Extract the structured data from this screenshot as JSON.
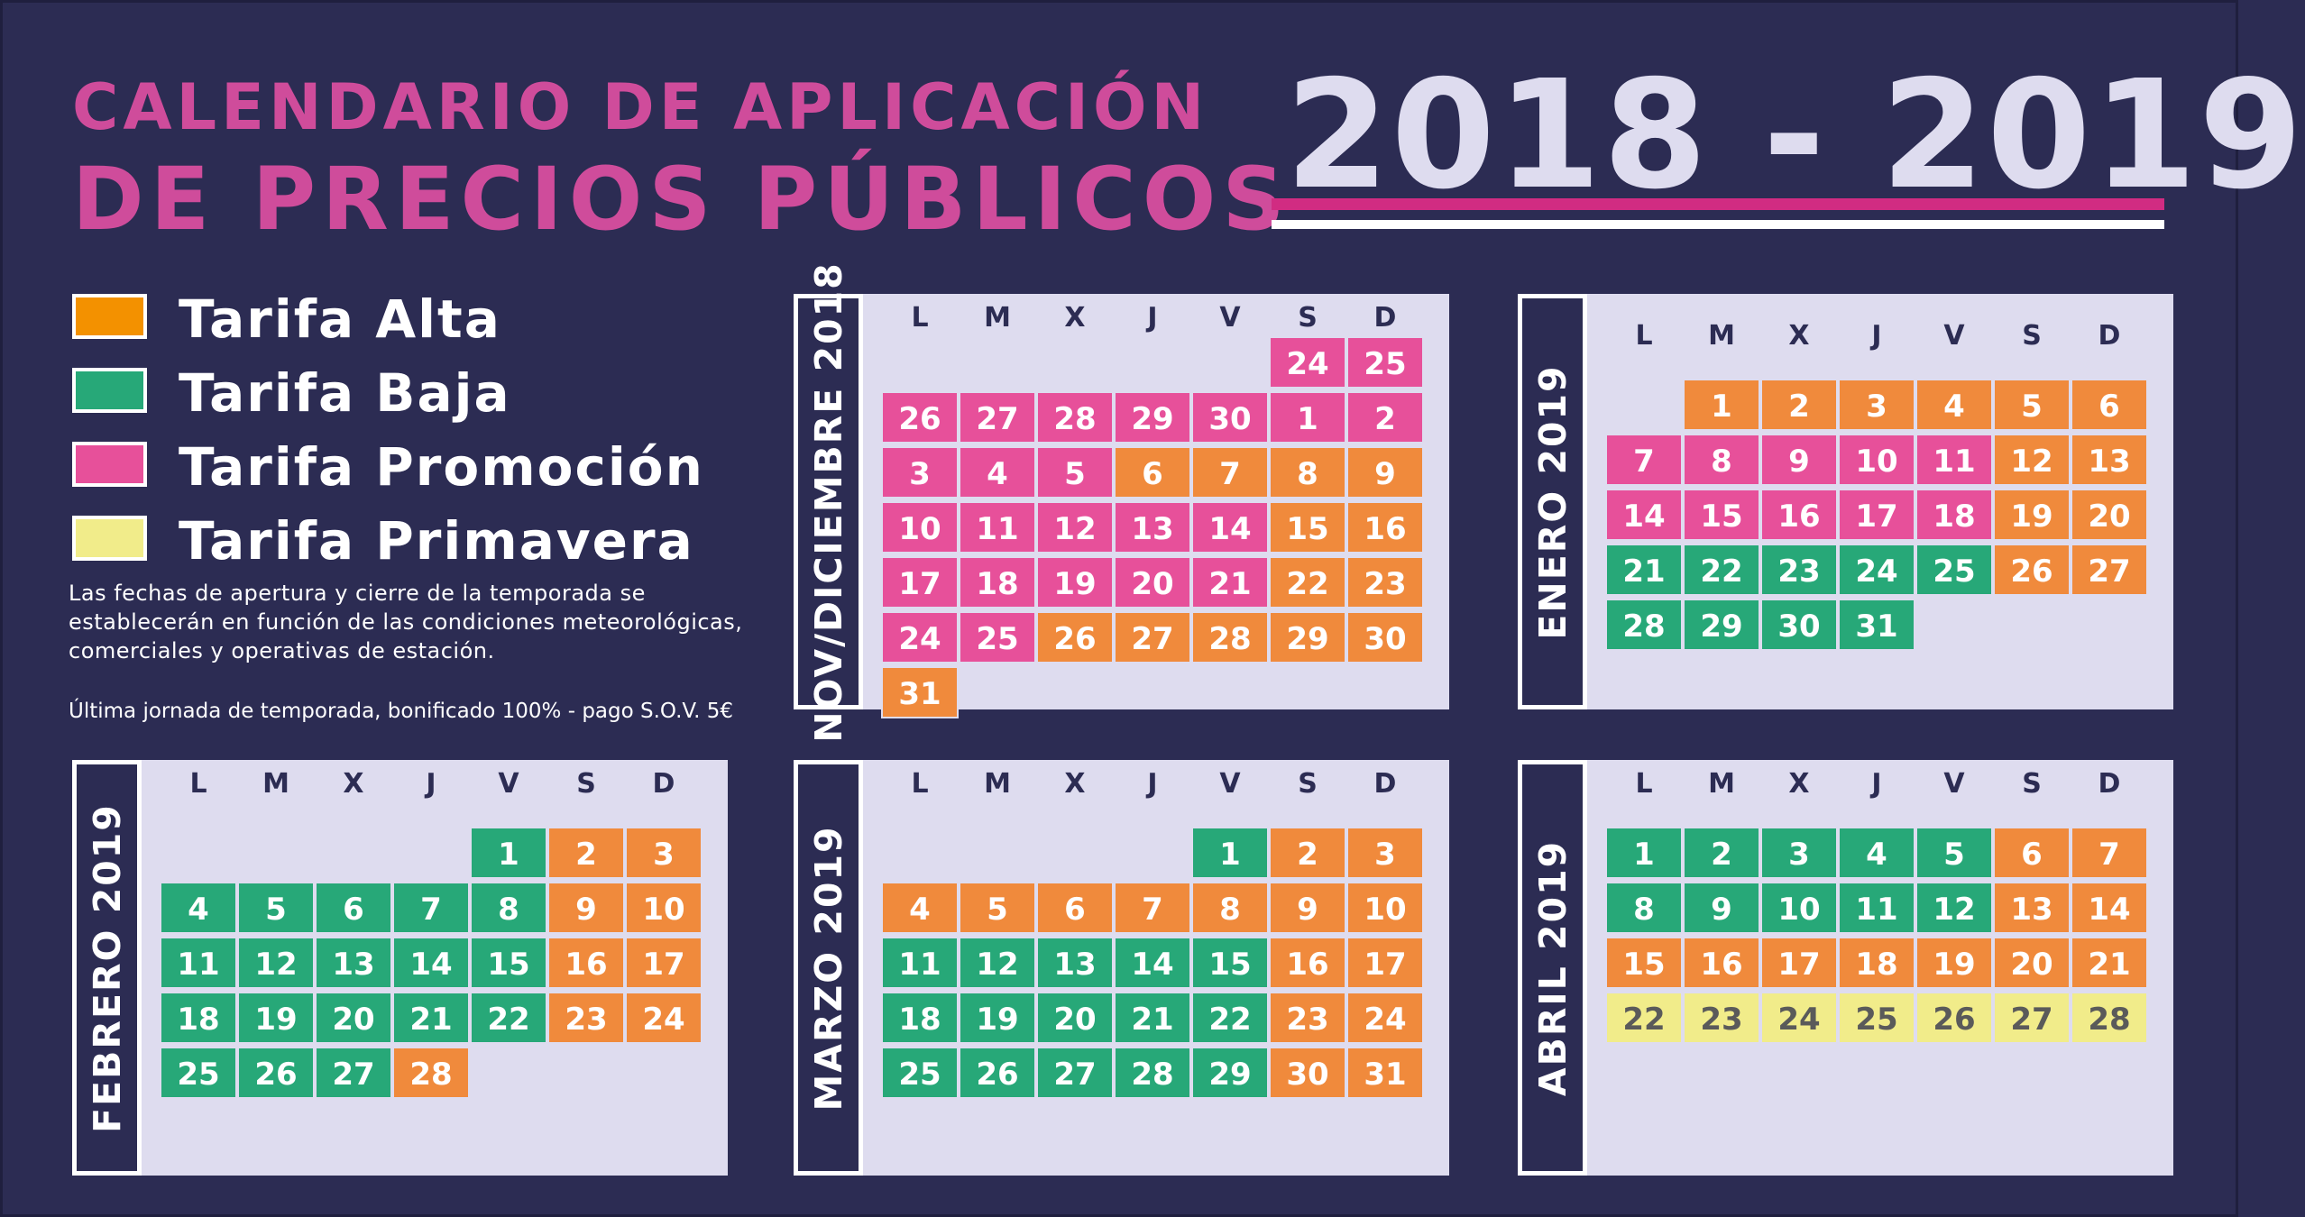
{
  "header": {
    "title_line1": "CALENDARIO DE APLICACIÓN",
    "title_line2": "DE PRECIOS PÚBLICOS",
    "season": "2018 - 2019"
  },
  "colors": {
    "background": "#2c2c53",
    "panel": "#dedcef",
    "A": "#f08a3c",
    "B": "#27a878",
    "P": "#e7509a",
    "V": "#f1ec8a",
    "title_pink": "#cf4c9b",
    "rule_pink": "#d12c82"
  },
  "legend": [
    {
      "key": "A",
      "label": "Tarifa Alta",
      "color": "#f39100"
    },
    {
      "key": "B",
      "label": "Tarifa Baja",
      "color": "#27a878"
    },
    {
      "key": "P",
      "label": "Tarifa Promoción",
      "color": "#e7509a"
    },
    {
      "key": "V",
      "label": "Tarifa Primavera",
      "color": "#f1ec8a"
    }
  ],
  "note": "Las fechas de apertura y cierre de la temporada se establecerán en función de las condiciones meteorológicas, comerciales y operativas de  estación.",
  "footnote": "Última jornada de temporada, bonificado 100% - pago S.O.V. 5€",
  "weekdays": [
    "L",
    "M",
    "X",
    "J",
    "V",
    "S",
    "D"
  ],
  "calendars": [
    {
      "id": "nov-dic-2018",
      "label": "NOV/DICIEMBRE 2018",
      "weeks": [
        [
          null,
          null,
          null,
          null,
          null,
          {
            "d": "24",
            "t": "P"
          },
          {
            "d": "25",
            "t": "P"
          }
        ],
        [
          {
            "d": "26",
            "t": "P"
          },
          {
            "d": "27",
            "t": "P"
          },
          {
            "d": "28",
            "t": "P"
          },
          {
            "d": "29",
            "t": "P"
          },
          {
            "d": "30",
            "t": "P"
          },
          {
            "d": "1",
            "t": "P"
          },
          {
            "d": "2",
            "t": "P"
          }
        ],
        [
          {
            "d": "3",
            "t": "P"
          },
          {
            "d": "4",
            "t": "P"
          },
          {
            "d": "5",
            "t": "P"
          },
          {
            "d": "6",
            "t": "A"
          },
          {
            "d": "7",
            "t": "A"
          },
          {
            "d": "8",
            "t": "A"
          },
          {
            "d": "9",
            "t": "A"
          }
        ],
        [
          {
            "d": "10",
            "t": "P"
          },
          {
            "d": "11",
            "t": "P"
          },
          {
            "d": "12",
            "t": "P"
          },
          {
            "d": "13",
            "t": "P"
          },
          {
            "d": "14",
            "t": "P"
          },
          {
            "d": "15",
            "t": "A"
          },
          {
            "d": "16",
            "t": "A"
          }
        ],
        [
          {
            "d": "17",
            "t": "P"
          },
          {
            "d": "18",
            "t": "P"
          },
          {
            "d": "19",
            "t": "P"
          },
          {
            "d": "20",
            "t": "P"
          },
          {
            "d": "21",
            "t": "P"
          },
          {
            "d": "22",
            "t": "A"
          },
          {
            "d": "23",
            "t": "A"
          }
        ],
        [
          {
            "d": "24",
            "t": "P"
          },
          {
            "d": "25",
            "t": "P"
          },
          {
            "d": "26",
            "t": "A"
          },
          {
            "d": "27",
            "t": "A"
          },
          {
            "d": "28",
            "t": "A"
          },
          {
            "d": "29",
            "t": "A"
          },
          {
            "d": "30",
            "t": "A"
          }
        ],
        [
          {
            "d": "31",
            "t": "A"
          },
          null,
          null,
          null,
          null,
          null,
          null
        ]
      ]
    },
    {
      "id": "enero-2019",
      "label": "ENERO 2019",
      "weeks": [
        [
          null,
          {
            "d": "1",
            "t": "A"
          },
          {
            "d": "2",
            "t": "A"
          },
          {
            "d": "3",
            "t": "A"
          },
          {
            "d": "4",
            "t": "A"
          },
          {
            "d": "5",
            "t": "A"
          },
          {
            "d": "6",
            "t": "A"
          }
        ],
        [
          {
            "d": "7",
            "t": "P"
          },
          {
            "d": "8",
            "t": "P"
          },
          {
            "d": "9",
            "t": "P"
          },
          {
            "d": "10",
            "t": "P"
          },
          {
            "d": "11",
            "t": "P"
          },
          {
            "d": "12",
            "t": "A"
          },
          {
            "d": "13",
            "t": "A"
          }
        ],
        [
          {
            "d": "14",
            "t": "P"
          },
          {
            "d": "15",
            "t": "P"
          },
          {
            "d": "16",
            "t": "P"
          },
          {
            "d": "17",
            "t": "P"
          },
          {
            "d": "18",
            "t": "P"
          },
          {
            "d": "19",
            "t": "A"
          },
          {
            "d": "20",
            "t": "A"
          }
        ],
        [
          {
            "d": "21",
            "t": "B"
          },
          {
            "d": "22",
            "t": "B"
          },
          {
            "d": "23",
            "t": "B"
          },
          {
            "d": "24",
            "t": "B"
          },
          {
            "d": "25",
            "t": "B"
          },
          {
            "d": "26",
            "t": "A"
          },
          {
            "d": "27",
            "t": "A"
          }
        ],
        [
          {
            "d": "28",
            "t": "B"
          },
          {
            "d": "29",
            "t": "B"
          },
          {
            "d": "30",
            "t": "B"
          },
          {
            "d": "31",
            "t": "B"
          },
          null,
          null,
          null
        ]
      ]
    },
    {
      "id": "febrero-2019",
      "label": "FEBRERO 2019",
      "weeks": [
        [
          null,
          null,
          null,
          null,
          {
            "d": "1",
            "t": "B"
          },
          {
            "d": "2",
            "t": "A"
          },
          {
            "d": "3",
            "t": "A"
          }
        ],
        [
          {
            "d": "4",
            "t": "B"
          },
          {
            "d": "5",
            "t": "B"
          },
          {
            "d": "6",
            "t": "B"
          },
          {
            "d": "7",
            "t": "B"
          },
          {
            "d": "8",
            "t": "B"
          },
          {
            "d": "9",
            "t": "A"
          },
          {
            "d": "10",
            "t": "A"
          }
        ],
        [
          {
            "d": "11",
            "t": "B"
          },
          {
            "d": "12",
            "t": "B"
          },
          {
            "d": "13",
            "t": "B"
          },
          {
            "d": "14",
            "t": "B"
          },
          {
            "d": "15",
            "t": "B"
          },
          {
            "d": "16",
            "t": "A"
          },
          {
            "d": "17",
            "t": "A"
          }
        ],
        [
          {
            "d": "18",
            "t": "B"
          },
          {
            "d": "19",
            "t": "B"
          },
          {
            "d": "20",
            "t": "B"
          },
          {
            "d": "21",
            "t": "B"
          },
          {
            "d": "22",
            "t": "B"
          },
          {
            "d": "23",
            "t": "A"
          },
          {
            "d": "24",
            "t": "A"
          }
        ],
        [
          {
            "d": "25",
            "t": "B"
          },
          {
            "d": "26",
            "t": "B"
          },
          {
            "d": "27",
            "t": "B"
          },
          {
            "d": "28",
            "t": "A"
          },
          null,
          null,
          null
        ]
      ]
    },
    {
      "id": "marzo-2019",
      "label": "MARZO 2019",
      "weeks": [
        [
          null,
          null,
          null,
          null,
          {
            "d": "1",
            "t": "B"
          },
          {
            "d": "2",
            "t": "A"
          },
          {
            "d": "3",
            "t": "A"
          }
        ],
        [
          {
            "d": "4",
            "t": "A"
          },
          {
            "d": "5",
            "t": "A"
          },
          {
            "d": "6",
            "t": "A"
          },
          {
            "d": "7",
            "t": "A"
          },
          {
            "d": "8",
            "t": "A"
          },
          {
            "d": "9",
            "t": "A"
          },
          {
            "d": "10",
            "t": "A"
          }
        ],
        [
          {
            "d": "11",
            "t": "B"
          },
          {
            "d": "12",
            "t": "B"
          },
          {
            "d": "13",
            "t": "B"
          },
          {
            "d": "14",
            "t": "B"
          },
          {
            "d": "15",
            "t": "B"
          },
          {
            "d": "16",
            "t": "A"
          },
          {
            "d": "17",
            "t": "A"
          }
        ],
        [
          {
            "d": "18",
            "t": "B"
          },
          {
            "d": "19",
            "t": "B"
          },
          {
            "d": "20",
            "t": "B"
          },
          {
            "d": "21",
            "t": "B"
          },
          {
            "d": "22",
            "t": "B"
          },
          {
            "d": "23",
            "t": "A"
          },
          {
            "d": "24",
            "t": "A"
          }
        ],
        [
          {
            "d": "25",
            "t": "B"
          },
          {
            "d": "26",
            "t": "B"
          },
          {
            "d": "27",
            "t": "B"
          },
          {
            "d": "28",
            "t": "B"
          },
          {
            "d": "29",
            "t": "B"
          },
          {
            "d": "30",
            "t": "A"
          },
          {
            "d": "31",
            "t": "A"
          }
        ]
      ]
    },
    {
      "id": "abril-2019",
      "label": "ABRIL 2019",
      "weeks": [
        [
          {
            "d": "1",
            "t": "B"
          },
          {
            "d": "2",
            "t": "B"
          },
          {
            "d": "3",
            "t": "B"
          },
          {
            "d": "4",
            "t": "B"
          },
          {
            "d": "5",
            "t": "B"
          },
          {
            "d": "6",
            "t": "A"
          },
          {
            "d": "7",
            "t": "A"
          }
        ],
        [
          {
            "d": "8",
            "t": "B"
          },
          {
            "d": "9",
            "t": "B"
          },
          {
            "d": "10",
            "t": "B"
          },
          {
            "d": "11",
            "t": "B"
          },
          {
            "d": "12",
            "t": "B"
          },
          {
            "d": "13",
            "t": "A"
          },
          {
            "d": "14",
            "t": "A"
          }
        ],
        [
          {
            "d": "15",
            "t": "A"
          },
          {
            "d": "16",
            "t": "A"
          },
          {
            "d": "17",
            "t": "A"
          },
          {
            "d": "18",
            "t": "A"
          },
          {
            "d": "19",
            "t": "A"
          },
          {
            "d": "20",
            "t": "A"
          },
          {
            "d": "21",
            "t": "A"
          }
        ],
        [
          {
            "d": "22",
            "t": "V"
          },
          {
            "d": "23",
            "t": "V"
          },
          {
            "d": "24",
            "t": "V"
          },
          {
            "d": "25",
            "t": "V"
          },
          {
            "d": "26",
            "t": "V"
          },
          {
            "d": "27",
            "t": "V"
          },
          {
            "d": "28",
            "t": "V"
          }
        ]
      ]
    }
  ]
}
